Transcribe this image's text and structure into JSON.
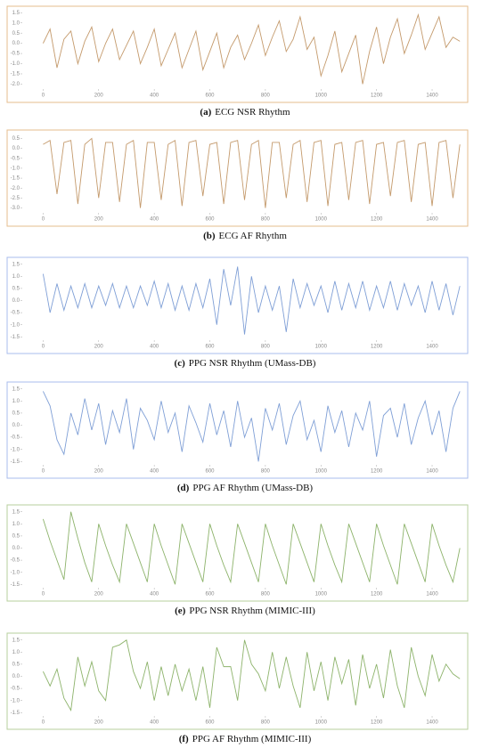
{
  "chart_data": [
    {
      "type": "line",
      "caption_label": "(a)",
      "caption": "ECG NSR Rhythm",
      "color": "#c49a6c",
      "frame_color": "#e6bd8e",
      "xlim": [
        -75,
        1525
      ],
      "xticks": [
        0,
        200,
        400,
        600,
        800,
        1000,
        1200,
        1400
      ],
      "ylim": [
        -2.2,
        1.6
      ],
      "yticks": [
        {
          "value": -2,
          "label": "-2.0"
        },
        -1.5,
        {
          "value": -1,
          "label": "-1.0"
        },
        -0.5,
        {
          "value": 0,
          "label": "0.0"
        },
        0.5,
        {
          "value": 1,
          "label": "1.0"
        },
        1.5
      ],
      "x": [
        0,
        25,
        50,
        75,
        100,
        125,
        150,
        175,
        200,
        225,
        250,
        275,
        300,
        325,
        350,
        375,
        400,
        425,
        450,
        475,
        500,
        525,
        550,
        575,
        600,
        625,
        650,
        675,
        700,
        725,
        750,
        775,
        800,
        825,
        850,
        875,
        900,
        925,
        950,
        975,
        1000,
        1025,
        1050,
        1075,
        1100,
        1125,
        1150,
        1175,
        1200,
        1225,
        1250,
        1275,
        1300,
        1325,
        1350,
        1375,
        1400,
        1425,
        1450,
        1475,
        1500
      ],
      "values": [
        0.0,
        0.7,
        -1.2,
        0.2,
        0.6,
        -1.0,
        0.1,
        0.8,
        -0.9,
        0.0,
        0.7,
        -0.8,
        -0.1,
        0.6,
        -1.0,
        -0.2,
        0.7,
        -1.1,
        -0.3,
        0.5,
        -1.2,
        -0.3,
        0.6,
        -1.3,
        -0.4,
        0.5,
        -1.2,
        -0.2,
        0.4,
        -0.8,
        0.0,
        0.9,
        -0.6,
        0.3,
        1.1,
        -0.4,
        0.2,
        1.3,
        -0.3,
        0.3,
        -1.6,
        -0.6,
        0.6,
        -1.4,
        -0.5,
        0.4,
        -2.0,
        -0.4,
        0.8,
        -1.0,
        0.3,
        1.2,
        -0.5,
        0.4,
        1.4,
        -0.3,
        0.5,
        1.3,
        -0.2,
        0.3,
        0.1
      ]
    },
    {
      "type": "line",
      "caption_label": "(b)",
      "caption": "ECG AF Rhythm",
      "color": "#c49a6c",
      "frame_color": "#e6bd8e",
      "xlim": [
        -75,
        1525
      ],
      "xticks": [
        0,
        200,
        400,
        600,
        800,
        1000,
        1200,
        1400
      ],
      "ylim": [
        -3.2,
        0.7
      ],
      "yticks": [
        {
          "value": -3,
          "label": "-3.0"
        },
        -2.5,
        {
          "value": -2,
          "label": "-2.0"
        },
        -1.5,
        {
          "value": -1,
          "label": "-1.0"
        },
        -0.5,
        {
          "value": 0,
          "label": "0.0"
        },
        0.5
      ],
      "x": [
        0,
        25,
        50,
        75,
        100,
        125,
        150,
        175,
        200,
        225,
        250,
        275,
        300,
        325,
        350,
        375,
        400,
        425,
        450,
        475,
        500,
        525,
        550,
        575,
        600,
        625,
        650,
        675,
        700,
        725,
        750,
        775,
        800,
        825,
        850,
        875,
        900,
        925,
        950,
        975,
        1000,
        1025,
        1050,
        1075,
        1100,
        1125,
        1150,
        1175,
        1200,
        1225,
        1250,
        1275,
        1300,
        1325,
        1350,
        1375,
        1400,
        1425,
        1450,
        1475,
        1500
      ],
      "values": [
        0.2,
        0.4,
        -2.3,
        0.3,
        0.4,
        -2.8,
        0.2,
        0.5,
        -2.5,
        0.3,
        0.3,
        -2.7,
        0.2,
        0.4,
        -3.0,
        0.3,
        0.3,
        -2.6,
        0.2,
        0.4,
        -2.9,
        0.3,
        0.4,
        -2.4,
        0.2,
        0.3,
        -2.8,
        0.3,
        0.4,
        -2.6,
        0.2,
        0.4,
        -3.0,
        0.3,
        0.3,
        -2.5,
        0.2,
        0.4,
        -2.7,
        0.3,
        0.4,
        -2.9,
        0.2,
        0.3,
        -2.6,
        0.3,
        0.4,
        -2.8,
        0.2,
        0.3,
        -2.4,
        0.3,
        0.4,
        -2.7,
        0.2,
        0.3,
        -2.9,
        0.3,
        0.4,
        -2.5,
        0.2
      ]
    },
    {
      "type": "line",
      "caption_label": "(c)",
      "caption": "PPG NSR Rhythm (UMass-DB)",
      "color": "#7f9fd6",
      "frame_color": "#a9bcec",
      "xlim": [
        -75,
        1525
      ],
      "xticks": [
        0,
        200,
        400,
        600,
        800,
        1000,
        1200,
        1400
      ],
      "ylim": [
        -1.6,
        1.6
      ],
      "yticks": [
        -1.5,
        {
          "value": -1,
          "label": "-1.0"
        },
        -0.5,
        {
          "value": 0,
          "label": "0.0"
        },
        0.5,
        {
          "value": 1,
          "label": "1.0"
        },
        1.5
      ],
      "x": [
        0,
        25,
        50,
        75,
        100,
        125,
        150,
        175,
        200,
        225,
        250,
        275,
        300,
        325,
        350,
        375,
        400,
        425,
        450,
        475,
        500,
        525,
        550,
        575,
        600,
        625,
        650,
        675,
        700,
        725,
        750,
        775,
        800,
        825,
        850,
        875,
        900,
        925,
        950,
        975,
        1000,
        1025,
        1050,
        1075,
        1100,
        1125,
        1150,
        1175,
        1200,
        1225,
        1250,
        1275,
        1300,
        1325,
        1350,
        1375,
        1400,
        1425,
        1450,
        1475,
        1500
      ],
      "values": [
        1.1,
        -0.5,
        0.7,
        -0.4,
        0.6,
        -0.3,
        0.7,
        -0.3,
        0.6,
        -0.2,
        0.7,
        -0.3,
        0.6,
        -0.3,
        0.6,
        -0.2,
        0.8,
        -0.3,
        0.7,
        -0.4,
        0.6,
        -0.4,
        0.7,
        -0.3,
        0.9,
        -1.0,
        1.3,
        -0.2,
        1.4,
        -1.4,
        1.0,
        -0.5,
        0.6,
        -0.4,
        0.6,
        -1.3,
        0.9,
        -0.3,
        0.7,
        -0.2,
        0.6,
        -0.5,
        0.8,
        -0.4,
        0.7,
        -0.3,
        0.8,
        -0.4,
        0.6,
        -0.3,
        0.8,
        -0.4,
        0.7,
        -0.2,
        0.6,
        -0.5,
        0.8,
        -0.4,
        0.7,
        -0.6,
        0.6
      ]
    },
    {
      "type": "line",
      "caption_label": "(d)",
      "caption": "PPG AF Rhythm (UMass-DB)",
      "color": "#7f9fd6",
      "frame_color": "#a9bcec",
      "xlim": [
        -75,
        1525
      ],
      "xticks": [
        0,
        200,
        400,
        600,
        800,
        1000,
        1200,
        1400
      ],
      "ylim": [
        -1.6,
        1.6
      ],
      "yticks": [
        -1.5,
        {
          "value": -1,
          "label": "-1.0"
        },
        -0.5,
        {
          "value": 0,
          "label": "0.0"
        },
        0.5,
        {
          "value": 1,
          "label": "1.0"
        },
        1.5
      ],
      "x": [
        0,
        25,
        50,
        75,
        100,
        125,
        150,
        175,
        200,
        225,
        250,
        275,
        300,
        325,
        350,
        375,
        400,
        425,
        450,
        475,
        500,
        525,
        550,
        575,
        600,
        625,
        650,
        675,
        700,
        725,
        750,
        775,
        800,
        825,
        850,
        875,
        900,
        925,
        950,
        975,
        1000,
        1025,
        1050,
        1075,
        1100,
        1125,
        1150,
        1175,
        1200,
        1225,
        1250,
        1275,
        1300,
        1325,
        1350,
        1375,
        1400,
        1425,
        1450,
        1475,
        1500
      ],
      "values": [
        1.4,
        0.8,
        -0.6,
        -1.2,
        0.5,
        -0.4,
        1.1,
        -0.2,
        0.9,
        -0.8,
        0.6,
        -0.3,
        1.1,
        -1.0,
        0.7,
        0.2,
        -0.6,
        1.0,
        -0.3,
        0.5,
        -1.1,
        0.8,
        0.1,
        -0.7,
        0.9,
        -0.4,
        0.6,
        -0.9,
        1.0,
        -0.5,
        0.3,
        -1.5,
        0.7,
        -0.2,
        0.9,
        -0.8,
        0.4,
        1.0,
        -0.6,
        0.2,
        -1.1,
        0.8,
        -0.3,
        0.6,
        -0.9,
        0.5,
        -0.2,
        1.0,
        -1.3,
        0.4,
        0.7,
        -0.5,
        0.9,
        -0.8,
        0.3,
        1.0,
        -0.4,
        0.6,
        -1.1,
        0.7,
        1.4
      ]
    },
    {
      "type": "line",
      "caption_label": "(e)",
      "caption": "PPG NSR Rhythm (MIMIC-III)",
      "color": "#8db36b",
      "frame_color": "#b7cf9c",
      "xlim": [
        -75,
        1525
      ],
      "xticks": [
        0,
        200,
        400,
        600,
        800,
        1000,
        1200,
        1400
      ],
      "ylim": [
        -1.6,
        1.6
      ],
      "yticks": [
        -1.5,
        {
          "value": -1,
          "label": "-1.0"
        },
        -0.5,
        {
          "value": 0,
          "label": "0.0"
        },
        0.5,
        {
          "value": 1,
          "label": "1.0"
        },
        1.5
      ],
      "x": [
        0,
        25,
        50,
        75,
        100,
        125,
        150,
        175,
        200,
        225,
        250,
        275,
        300,
        325,
        350,
        375,
        400,
        425,
        450,
        475,
        500,
        525,
        550,
        575,
        600,
        625,
        650,
        675,
        700,
        725,
        750,
        775,
        800,
        825,
        850,
        875,
        900,
        925,
        950,
        975,
        1000,
        1025,
        1050,
        1075,
        1100,
        1125,
        1150,
        1175,
        1200,
        1225,
        1250,
        1275,
        1300,
        1325,
        1350,
        1375,
        1400,
        1425,
        1450,
        1475,
        1500
      ],
      "values": [
        1.2,
        0.3,
        -0.5,
        -1.3,
        1.5,
        0.4,
        -0.6,
        -1.4,
        1.0,
        0.1,
        -0.7,
        -1.4,
        1.0,
        0.2,
        -0.6,
        -1.4,
        1.0,
        0.1,
        -0.7,
        -1.5,
        1.0,
        0.2,
        -0.6,
        -1.4,
        1.0,
        0.1,
        -0.7,
        -1.4,
        1.0,
        0.2,
        -0.6,
        -1.4,
        1.0,
        0.1,
        -0.7,
        -1.5,
        1.0,
        0.2,
        -0.6,
        -1.4,
        1.0,
        0.1,
        -0.7,
        -1.4,
        1.0,
        0.2,
        -0.6,
        -1.4,
        1.0,
        0.1,
        -0.7,
        -1.5,
        1.0,
        0.2,
        -0.6,
        -1.4,
        1.0,
        0.1,
        -0.7,
        -1.4,
        0.0
      ]
    },
    {
      "type": "line",
      "caption_label": "(f)",
      "caption": "PPG AF Rhythm (MIMIC-III)",
      "color": "#8db36b",
      "frame_color": "#b7cf9c",
      "xlim": [
        -75,
        1525
      ],
      "xticks": [
        0,
        200,
        400,
        600,
        800,
        1000,
        1200,
        1400
      ],
      "ylim": [
        -1.6,
        1.6
      ],
      "yticks": [
        -1.5,
        {
          "value": -1,
          "label": "-1.0"
        },
        -0.5,
        {
          "value": 0,
          "label": "0.0"
        },
        0.5,
        {
          "value": 1,
          "label": "1.0"
        },
        1.5
      ],
      "x": [
        0,
        25,
        50,
        75,
        100,
        125,
        150,
        175,
        200,
        225,
        250,
        275,
        300,
        325,
        350,
        375,
        400,
        425,
        450,
        475,
        500,
        525,
        550,
        575,
        600,
        625,
        650,
        675,
        700,
        725,
        750,
        775,
        800,
        825,
        850,
        875,
        900,
        925,
        950,
        975,
        1000,
        1025,
        1050,
        1075,
        1100,
        1125,
        1150,
        1175,
        1200,
        1225,
        1250,
        1275,
        1300,
        1325,
        1350,
        1375,
        1400,
        1425,
        1450,
        1475,
        1500
      ],
      "values": [
        0.2,
        -0.4,
        0.3,
        -0.9,
        -1.4,
        0.8,
        -0.4,
        0.6,
        -0.6,
        -1.0,
        1.2,
        1.3,
        1.5,
        0.2,
        -0.5,
        0.6,
        -1.0,
        0.4,
        -0.8,
        0.5,
        -0.6,
        0.3,
        -1.0,
        0.4,
        -1.3,
        1.2,
        0.4,
        0.4,
        -1.0,
        1.5,
        0.5,
        0.1,
        -0.6,
        1.0,
        -0.5,
        0.8,
        -0.4,
        -1.3,
        1.0,
        -0.6,
        0.6,
        -1.0,
        0.8,
        -0.3,
        0.7,
        -1.2,
        0.9,
        -0.5,
        0.5,
        -0.9,
        1.1,
        -0.4,
        -1.3,
        1.2,
        0.0,
        -0.8,
        0.9,
        -0.2,
        0.5,
        0.1,
        -0.1
      ]
    }
  ]
}
